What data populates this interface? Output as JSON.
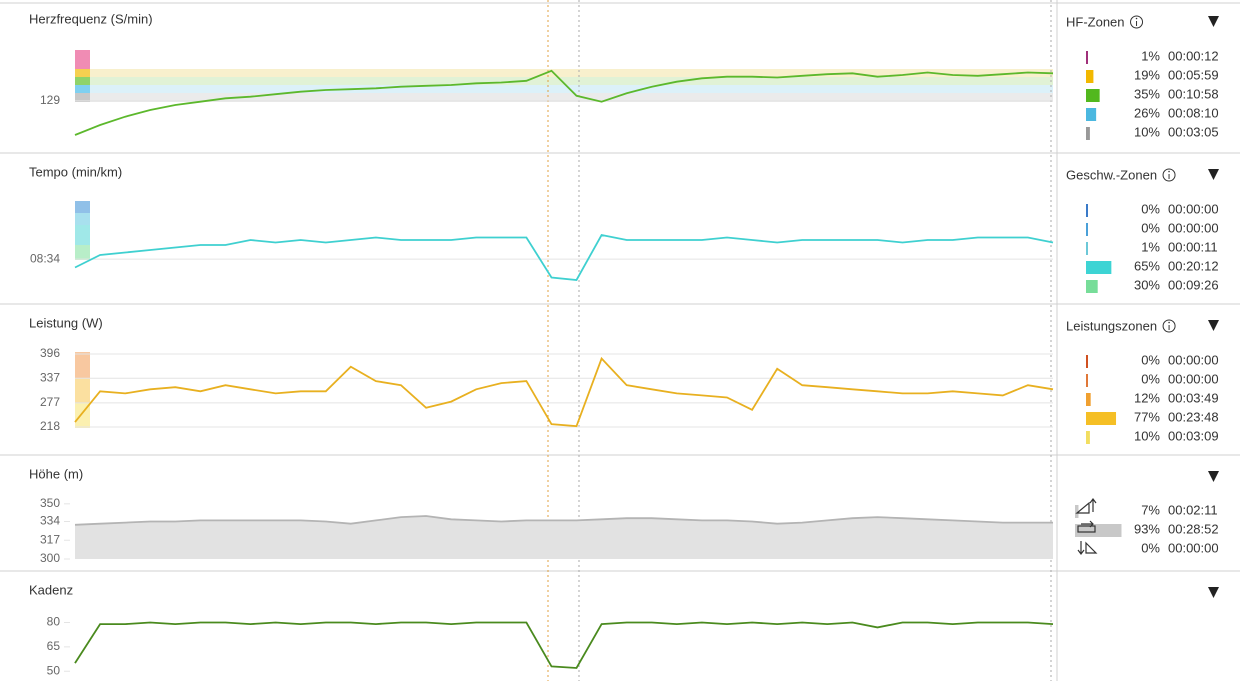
{
  "chart_data": [
    {
      "type": "line",
      "title": "Herzfrequenz (S/min)",
      "color": "#5cb82c",
      "ylim": [
        82,
        196
      ],
      "yticks": [
        129
      ],
      "grid": true,
      "values": [
        88,
        100,
        110,
        118,
        124,
        128,
        132,
        134,
        137,
        140,
        142,
        143,
        144,
        146,
        147,
        148,
        150,
        151,
        153,
        165,
        135,
        128,
        138,
        146,
        152,
        156,
        158,
        158,
        157,
        159,
        161,
        162,
        158,
        160,
        163,
        160,
        159,
        161,
        163,
        162
      ]
    },
    {
      "type": "line",
      "title": "Tempo (min/km)",
      "color": "#3fd0d0",
      "ylim": [
        9.8,
        6.0
      ],
      "yticks": [
        {
          "value": 8.5667,
          "label": "08:34"
        }
      ],
      "grid": true,
      "values": [
        8.9,
        8.4,
        8.3,
        8.2,
        8.1,
        8.0,
        8.0,
        7.8,
        7.9,
        7.8,
        7.9,
        7.8,
        7.7,
        7.8,
        7.8,
        7.8,
        7.7,
        7.7,
        7.7,
        9.3,
        9.4,
        7.6,
        7.8,
        7.8,
        7.8,
        7.8,
        7.7,
        7.8,
        7.9,
        7.8,
        7.8,
        7.8,
        7.8,
        7.9,
        7.8,
        7.8,
        7.7,
        7.7,
        7.7,
        7.9
      ]
    },
    {
      "type": "line",
      "title": "Leistung (W)",
      "color": "#e8b020",
      "ylim": [
        162,
        418
      ],
      "yticks": [
        218,
        277,
        337,
        396
      ],
      "grid": true,
      "values": [
        230,
        305,
        300,
        310,
        315,
        305,
        320,
        310,
        300,
        305,
        305,
        365,
        330,
        320,
        265,
        280,
        310,
        325,
        330,
        225,
        220,
        385,
        320,
        310,
        300,
        295,
        290,
        260,
        360,
        320,
        315,
        310,
        305,
        300,
        300,
        305,
        300,
        295,
        320,
        310
      ]
    },
    {
      "type": "area",
      "title": "Höhe (m)",
      "color": "#b4b4b4",
      "ylim": [
        300,
        358
      ],
      "yticks": [
        300,
        317,
        334,
        350
      ],
      "grid": false,
      "values": [
        331,
        332,
        333,
        334,
        334,
        335,
        335,
        335,
        335,
        335,
        334,
        332,
        335,
        338,
        339,
        336,
        335,
        334,
        335,
        335,
        335,
        336,
        337,
        337,
        336,
        335,
        335,
        334,
        332,
        333,
        335,
        337,
        338,
        337,
        336,
        335,
        334,
        333,
        333,
        333
      ]
    },
    {
      "type": "line",
      "title": "Kadenz",
      "color": "#4a8a1e",
      "ylim": [
        44,
        92
      ],
      "yticks": [
        50,
        65,
        80
      ],
      "grid": false,
      "values": [
        55,
        79,
        79,
        80,
        79,
        80,
        80,
        79,
        80,
        79,
        80,
        80,
        79,
        80,
        80,
        79,
        80,
        80,
        80,
        53,
        52,
        79,
        80,
        80,
        79,
        80,
        79,
        80,
        79,
        80,
        79,
        80,
        77,
        80,
        80,
        79,
        80,
        80,
        80,
        79
      ]
    }
  ],
  "side_panels": [
    {
      "title": "HF-Zonen",
      "values": [
        1,
        19,
        35,
        26,
        10
      ],
      "value_labels": [
        "1%",
        "19%",
        "35%",
        "26%",
        "10%"
      ],
      "times": [
        "00:00:12",
        "00:05:59",
        "00:10:58",
        "00:08:10",
        "00:03:05"
      ],
      "colors": [
        "#a0307a",
        "#f2b800",
        "#52b81e",
        "#4bb8e0",
        "#999999"
      ]
    },
    {
      "title": "Geschw.-Zonen",
      "values": [
        0,
        0,
        1,
        65,
        30
      ],
      "value_labels": [
        "0%",
        "0%",
        "1%",
        "65%",
        "30%"
      ],
      "times": [
        "00:00:00",
        "00:00:00",
        "00:00:11",
        "00:20:12",
        "00:09:26"
      ],
      "colors": [
        "#3a7ac8",
        "#4aa0d8",
        "#6cc8d8",
        "#3dd4d4",
        "#77dd99"
      ]
    },
    {
      "title": "Leistungszonen",
      "values": [
        0,
        0,
        12,
        77,
        10
      ],
      "value_labels": [
        "0%",
        "0%",
        "12%",
        "77%",
        "10%"
      ],
      "times": [
        "00:00:00",
        "00:00:00",
        "00:03:49",
        "00:23:48",
        "00:03:09"
      ],
      "colors": [
        "#d05020",
        "#e07838",
        "#f0a030",
        "#f5bf25",
        "#f2de60"
      ]
    },
    {
      "values": [
        7,
        93,
        0
      ],
      "value_labels": [
        "7%",
        "93%",
        "0%"
      ],
      "times": [
        "00:02:11",
        "00:28:52",
        "00:00:00"
      ],
      "colors": [
        "#c8c8c8",
        "#c8c8c8",
        "#c8c8c8"
      ]
    }
  ]
}
